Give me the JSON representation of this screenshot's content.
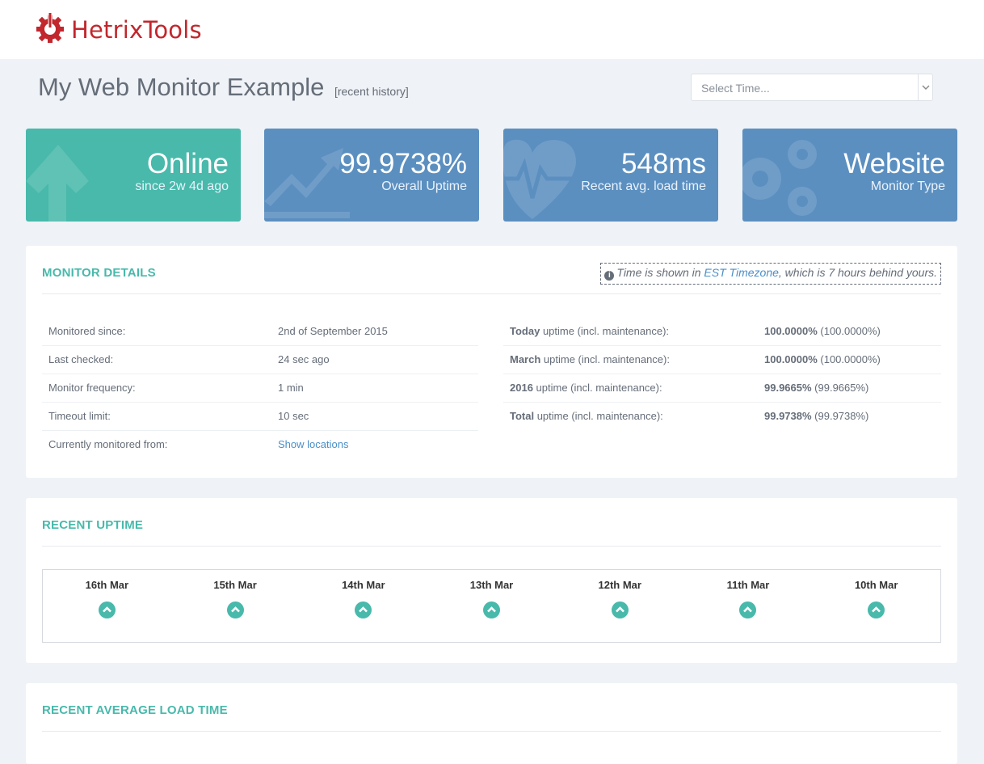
{
  "brand": {
    "name": "HetrixTools",
    "color": "#c1272d",
    "icon": "wrench-gear-icon"
  },
  "header": {
    "title": "My Web Monitor Example",
    "subtitle": "[recent history]"
  },
  "time_select": {
    "placeholder": "Select Time..."
  },
  "stats": [
    {
      "value": "Online",
      "label": "since 2w 4d ago",
      "icon": "arrow-up-icon",
      "color": "#48b9ab"
    },
    {
      "value": "99.9738%",
      "label": "Overall Uptime",
      "icon": "trend-chart-icon",
      "color": "#5b8fc0"
    },
    {
      "value": "548ms",
      "label": "Recent avg. load time",
      "icon": "heartbeat-icon",
      "color": "#5b8fc0"
    },
    {
      "value": "Website",
      "label": "Monitor Type",
      "icon": "gears-icon",
      "color": "#5b8fc0"
    }
  ],
  "details": {
    "title": "MONITOR DETAILS",
    "tz_note": {
      "prefix": "Time is shown in ",
      "link": "EST Timezone",
      "suffix": ", which is 7 hours behind yours."
    },
    "left_rows": [
      {
        "label": "Monitored since:",
        "value": "2nd of September 2015"
      },
      {
        "label": "Last checked:",
        "value": "24 sec ago"
      },
      {
        "label": "Monitor frequency:",
        "value": "1 min"
      },
      {
        "label": "Timeout limit:",
        "value": "10 sec"
      },
      {
        "label": "Currently monitored from:",
        "value": "Show locations"
      }
    ],
    "right_rows": [
      {
        "period": "Today",
        "label": " uptime (incl. maintenance):",
        "value": "100.0000%",
        "sub": " (100.0000%)"
      },
      {
        "period": "March",
        "label": " uptime (incl. maintenance):",
        "value": "100.0000%",
        "sub": " (100.0000%)"
      },
      {
        "period": "2016",
        "label": " uptime (incl. maintenance):",
        "value": "99.9665%",
        "sub": " (99.9665%)"
      },
      {
        "period": "Total",
        "label": " uptime (incl. maintenance):",
        "value": "99.9738%",
        "sub": " (99.9738%)"
      }
    ]
  },
  "recent_uptime": {
    "title": "RECENT UPTIME",
    "days": [
      {
        "label": "16th Mar",
        "status": "up"
      },
      {
        "label": "15th Mar",
        "status": "up"
      },
      {
        "label": "14th Mar",
        "status": "up"
      },
      {
        "label": "13th Mar",
        "status": "up"
      },
      {
        "label": "12th Mar",
        "status": "up"
      },
      {
        "label": "11th Mar",
        "status": "up"
      },
      {
        "label": "10th Mar",
        "status": "up"
      }
    ]
  },
  "load_time": {
    "title": "RECENT AVERAGE LOAD TIME"
  }
}
